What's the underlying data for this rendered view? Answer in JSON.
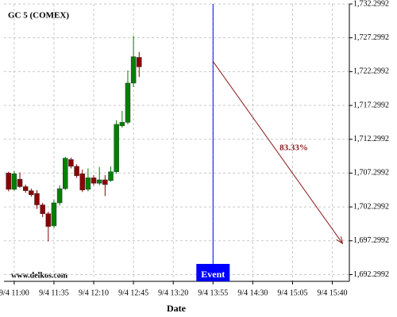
{
  "chart_data": {
    "type": "candlestick",
    "title": "GC 5 (COMEX)",
    "x_label": "Date",
    "watermark": "www.delkos.com",
    "up_color": "#008000",
    "down_color": "#8b0000",
    "grid": true,
    "xlim": [
      "9/4 10:51",
      "9/4 15:55"
    ],
    "xticks": [
      "9/4 11:00",
      "9/4 11:35",
      "9/4 12:10",
      "9/4 12:45",
      "9/4 13:20",
      "9/4 13:55",
      "9/4 14:30",
      "9/4 15:05",
      "9/4 15:40"
    ],
    "ylim": [
      1691.3,
      1732.2992
    ],
    "yticks": [
      {
        "value": 1692.2992,
        "label": "1,692.2992"
      },
      {
        "value": 1697.2992,
        "label": "1,697.2992"
      },
      {
        "value": 1702.2992,
        "label": "1,702.2992"
      },
      {
        "value": 1707.2992,
        "label": "1,707.2992"
      },
      {
        "value": 1712.2992,
        "label": "1,712.2992"
      },
      {
        "value": 1717.2992,
        "label": "1,717.2992"
      },
      {
        "value": 1722.2992,
        "label": "1,722.2992"
      },
      {
        "value": 1727.2992,
        "label": "1,727.2992"
      },
      {
        "value": 1732.2992,
        "label": "1,732.2992"
      }
    ],
    "x": [
      "9/4 10:55",
      "9/4 11:00",
      "9/4 11:05",
      "9/4 11:10",
      "9/4 11:15",
      "9/4 11:20",
      "9/4 11:25",
      "9/4 11:30",
      "9/4 11:35",
      "9/4 11:40",
      "9/4 11:45",
      "9/4 11:50",
      "9/4 11:55",
      "9/4 12:00",
      "9/4 12:05",
      "9/4 12:10",
      "9/4 12:15",
      "9/4 12:20",
      "9/4 12:25",
      "9/4 12:30",
      "9/4 12:35",
      "9/4 12:40",
      "9/4 12:45",
      "9/4 12:50"
    ],
    "open": [
      1707.3,
      1704.9,
      1706.4,
      1705.3,
      1704.7,
      1704.3,
      1702.6,
      1701.3,
      1699.5,
      1702.9,
      1705.0,
      1709.3,
      1708.3,
      1707.2,
      1704.9,
      1706.6,
      1705.8,
      1706.3,
      1706.2,
      1707.5,
      1714.3,
      1714.8,
      1720.6,
      1724.4
    ],
    "high": [
      1707.5,
      1707.6,
      1707.4,
      1705.6,
      1705.0,
      1704.8,
      1702.9,
      1701.6,
      1703.4,
      1705.5,
      1709.7,
      1709.6,
      1708.6,
      1707.8,
      1708.0,
      1707.0,
      1708.2,
      1707.0,
      1708.3,
      1715.1,
      1716.5,
      1722.5,
      1727.6,
      1725.2
    ],
    "low": [
      1704.6,
      1704.7,
      1705.1,
      1704.4,
      1703.8,
      1702.0,
      1700.8,
      1697.2,
      1699.2,
      1702.5,
      1704.8,
      1708.0,
      1706.6,
      1704.5,
      1704.6,
      1705.5,
      1705.5,
      1703.9,
      1706.0,
      1707.2,
      1714.0,
      1714.5,
      1720.0,
      1721.5
    ],
    "close": [
      1704.9,
      1707.2,
      1705.3,
      1704.7,
      1704.1,
      1702.6,
      1701.3,
      1699.4,
      1702.9,
      1705.0,
      1709.5,
      1708.3,
      1706.9,
      1704.8,
      1706.6,
      1705.8,
      1706.3,
      1705.6,
      1707.5,
      1714.5,
      1714.8,
      1720.6,
      1724.5,
      1723.0
    ],
    "event": {
      "x": "9/4 13:55",
      "label": "Event",
      "color": "#0000ff"
    },
    "arrow": {
      "start_x": "9/4 13:55",
      "start_y": 1723.8,
      "end_x": "9/4 15:49",
      "end_y": 1696.9,
      "label": "83.33%",
      "color": "#8b1a1a"
    }
  }
}
